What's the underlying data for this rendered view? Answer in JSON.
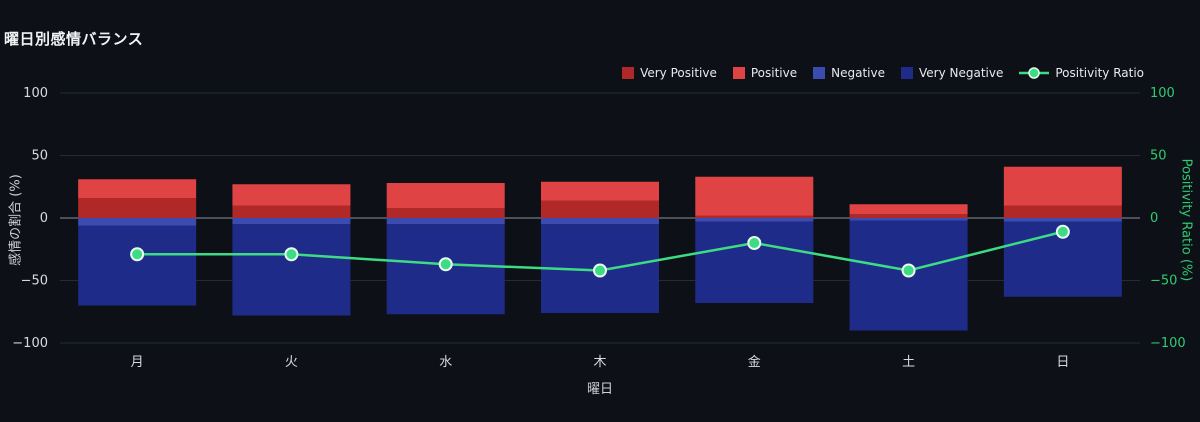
{
  "chart": {
    "title": "曜日別感情バランス",
    "axes": {
      "left_label": "感情の割合 (%)",
      "right_label": "Positivity Ratio (%)",
      "x_label": "曜日"
    }
  },
  "chart_data": {
    "type": "bar",
    "subtype": "diverging-stacked-bar-with-line",
    "title": "曜日別感情バランス",
    "xlabel": "曜日",
    "ylabel": "感情の割合 (%)",
    "y2label": "Positivity Ratio (%)",
    "categories": [
      "月",
      "火",
      "水",
      "木",
      "金",
      "土",
      "日"
    ],
    "yticks": [
      100,
      50,
      0,
      -50,
      -100
    ],
    "ylim": [
      -100,
      100
    ],
    "y2lim": [
      -100,
      100
    ],
    "grid": true,
    "legend_position": "top-right",
    "colors": {
      "grid": "#242a36",
      "zero_line": "#8b909a",
      "tick_left": "#d8dadd",
      "tick_right": "#2ecc71",
      "background": "#0d1117"
    },
    "series": [
      {
        "name": "Very Positive",
        "type": "bar",
        "axis": "left",
        "color": "#b02828",
        "values": [
          16,
          10,
          8,
          14,
          2,
          3,
          10
        ]
      },
      {
        "name": "Positive",
        "type": "bar",
        "axis": "left",
        "color": "#e04343",
        "values": [
          15,
          17,
          20,
          15,
          31,
          8,
          31
        ]
      },
      {
        "name": "Negative",
        "type": "bar",
        "axis": "left",
        "color": "#3c4bb0",
        "values": [
          -6,
          -5,
          -5,
          -5,
          -3,
          -2,
          -3
        ]
      },
      {
        "name": "Very Negative",
        "type": "bar",
        "axis": "left",
        "color": "#1f2b88",
        "values": [
          -64,
          -73,
          -72,
          -71,
          -65,
          -88,
          -60
        ]
      },
      {
        "name": "Positivity Ratio",
        "type": "line",
        "axis": "right",
        "color": "#3ddc84",
        "marker_outline": "#e9f9ef",
        "values": [
          -29,
          -29,
          -37,
          -42,
          -20,
          -42,
          -11
        ]
      }
    ]
  }
}
